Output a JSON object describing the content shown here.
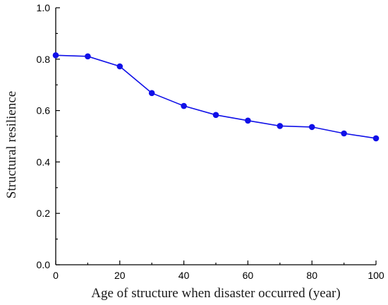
{
  "chart_data": {
    "type": "line",
    "xlabel": "Age of structure when disaster occurred (year)",
    "ylabel": "Structural resilience",
    "xlim": [
      0,
      100
    ],
    "ylim": [
      0.0,
      1.0
    ],
    "x_ticks": [
      "0",
      "20",
      "40",
      "60",
      "80",
      "100"
    ],
    "y_ticks": [
      "0.0",
      "0.2",
      "0.4",
      "0.6",
      "0.8",
      "1.0"
    ],
    "grid": false,
    "legend": "none",
    "series": [
      {
        "color": "#1010e8",
        "x": [
          0,
          10,
          20,
          30,
          40,
          50,
          60,
          70,
          80,
          90,
          100
        ],
        "y": [
          0.815,
          0.811,
          0.772,
          0.668,
          0.618,
          0.583,
          0.561,
          0.54,
          0.536,
          0.511,
          0.492
        ]
      }
    ]
  }
}
